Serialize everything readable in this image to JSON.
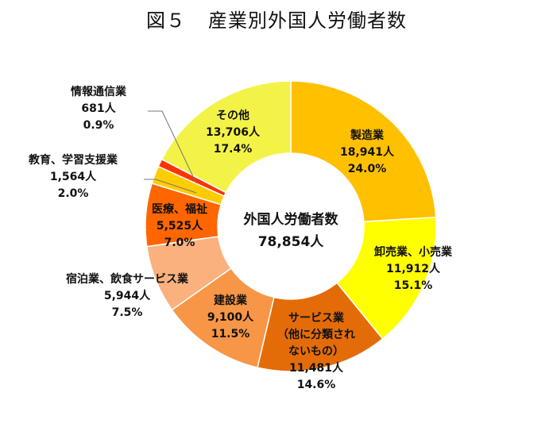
{
  "title": {
    "figure": "図５",
    "text": "産業別外国人労働者数"
  },
  "chart_data": {
    "type": "pie",
    "variant": "donut",
    "center_label": [
      "外国人労働者数",
      "78,854人"
    ],
    "total": 78854,
    "unit": "人",
    "slices": [
      {
        "key": "mfg",
        "label_lines": [
          "製造業"
        ],
        "value": 18941,
        "value_text": "18,941人",
        "percent_text": "24.0%",
        "color": "#FFC000"
      },
      {
        "key": "retail",
        "label_lines": [
          "卸売業、小売業"
        ],
        "value": 11912,
        "value_text": "11,912人",
        "percent_text": "15.1%",
        "color": "#FFFF00"
      },
      {
        "key": "service",
        "label_lines": [
          "サービス業",
          "（他に分類され",
          "ないもの）"
        ],
        "value": 11481,
        "value_text": "11,481人",
        "percent_text": "14.6%",
        "color": "#E36C09"
      },
      {
        "key": "construction",
        "label_lines": [
          "建設業"
        ],
        "value": 9100,
        "value_text": "9,100人",
        "percent_text": "11.5%",
        "color": "#F79646"
      },
      {
        "key": "hospitality",
        "label_lines": [
          "宿泊業、飲食サービス業"
        ],
        "value": 5944,
        "value_text": "5,944人",
        "percent_text": "7.5%",
        "color": "#FAB17D"
      },
      {
        "key": "medical",
        "label_lines": [
          "医療、福祉"
        ],
        "value": 5525,
        "value_text": "5,525人",
        "percent_text": "7.0%",
        "color": "#FF6600"
      },
      {
        "key": "education",
        "label_lines": [
          "教育、学習支援業"
        ],
        "value": 1564,
        "value_text": "1,564人",
        "percent_text": "2.0%",
        "color": "#FFCC00"
      },
      {
        "key": "info",
        "label_lines": [
          "情報通信業"
        ],
        "value": 681,
        "value_text": "681人",
        "percent_text": "0.9%",
        "color": "#FF3300"
      },
      {
        "key": "other",
        "label_lines": [
          "その他"
        ],
        "value": 13706,
        "value_text": "13,706人",
        "percent_text": "17.4%",
        "color": "#F3F347"
      }
    ]
  }
}
